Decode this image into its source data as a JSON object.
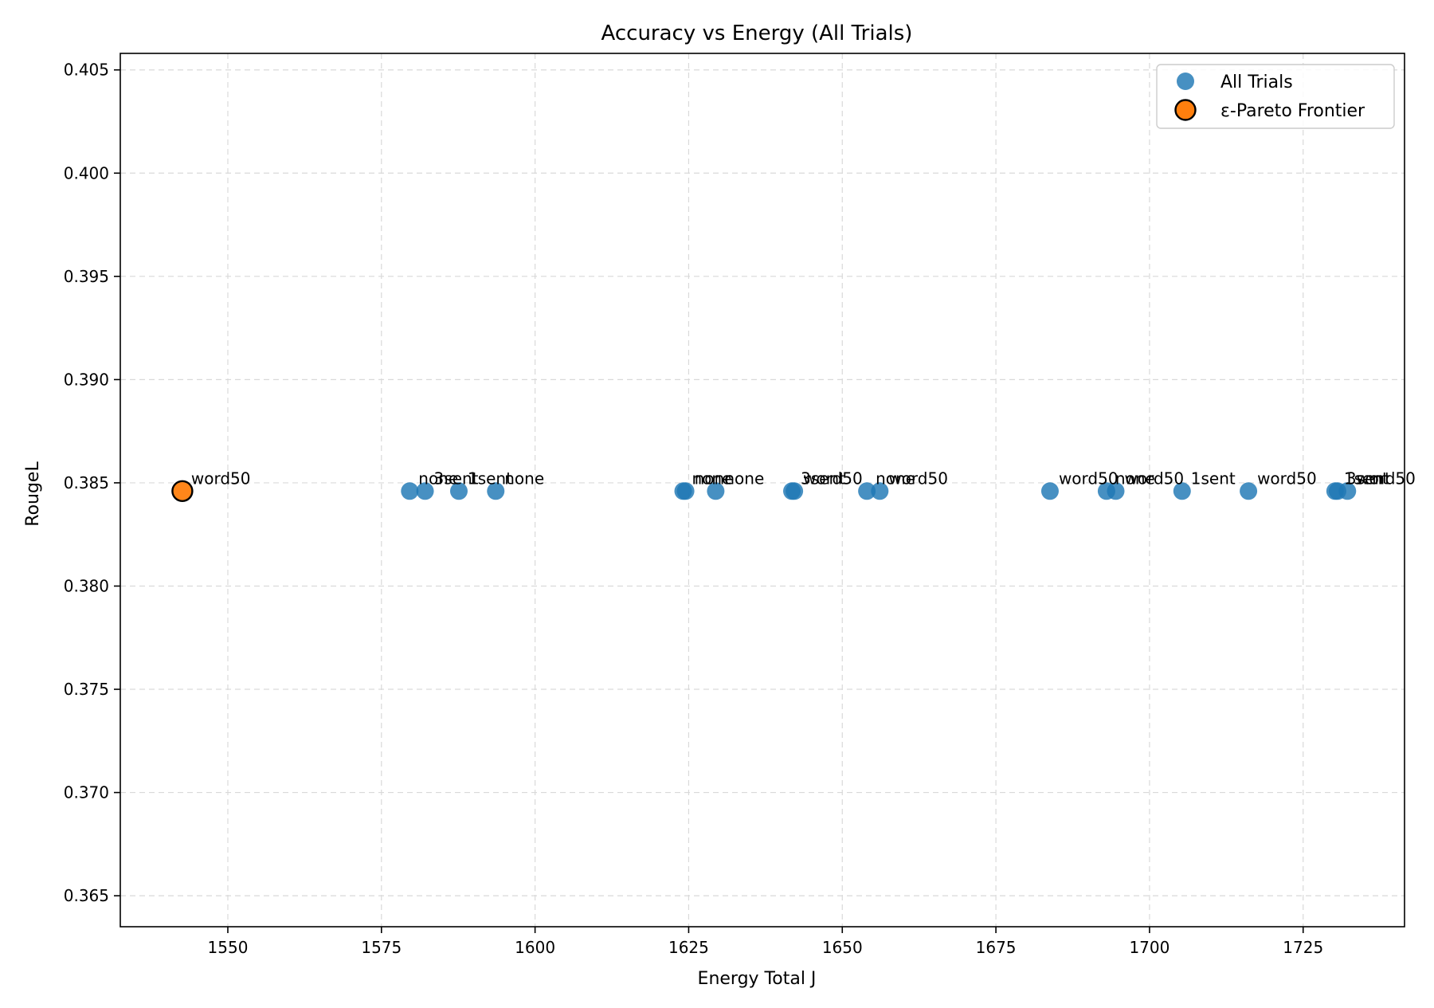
{
  "chart_data": {
    "type": "scatter",
    "title": "Accuracy vs Energy (All Trials)",
    "xlabel": "Energy Total J",
    "ylabel": "RougeL",
    "xlim": [
      1532.5,
      1741.5
    ],
    "ylim": [
      0.3635,
      0.4058
    ],
    "xticks": [
      1550,
      1575,
      1600,
      1625,
      1650,
      1675,
      1700,
      1725
    ],
    "yticks": [
      0.365,
      0.37,
      0.375,
      0.38,
      0.385,
      0.39,
      0.395,
      0.4,
      0.405
    ],
    "grid": true,
    "legend_position": "top-right",
    "colors": {
      "all_trials": "#1f77b4",
      "pareto": "#ff7f0e",
      "pareto_edge": "#000000"
    },
    "series": [
      {
        "name": "All Trials",
        "points": [
          {
            "x": 1579.6,
            "y": 0.3846,
            "label": "none"
          },
          {
            "x": 1582.1,
            "y": 0.3846,
            "label": "3sent"
          },
          {
            "x": 1587.6,
            "y": 0.3846,
            "label": "1sent"
          },
          {
            "x": 1593.6,
            "y": 0.3846,
            "label": "none"
          },
          {
            "x": 1624.1,
            "y": 0.3846,
            "label": "none"
          },
          {
            "x": 1624.5,
            "y": 0.3846,
            "label": "none"
          },
          {
            "x": 1629.4,
            "y": 0.3846,
            "label": "none"
          },
          {
            "x": 1641.8,
            "y": 0.3846,
            "label": "3sent"
          },
          {
            "x": 1642.2,
            "y": 0.3846,
            "label": "word50"
          },
          {
            "x": 1654.0,
            "y": 0.3846,
            "label": "none"
          },
          {
            "x": 1656.1,
            "y": 0.3846,
            "label": "word50"
          },
          {
            "x": 1683.8,
            "y": 0.3846,
            "label": "word50"
          },
          {
            "x": 1693.0,
            "y": 0.3846,
            "label": "none"
          },
          {
            "x": 1694.5,
            "y": 0.3846,
            "label": "word50"
          },
          {
            "x": 1705.3,
            "y": 0.3846,
            "label": "1sent"
          },
          {
            "x": 1716.1,
            "y": 0.3846,
            "label": "word50"
          },
          {
            "x": 1730.2,
            "y": 0.3846,
            "label": "1sent"
          },
          {
            "x": 1730.6,
            "y": 0.3846,
            "label": "3sent"
          },
          {
            "x": 1732.2,
            "y": 0.3846,
            "label": "word50"
          }
        ]
      },
      {
        "name": "ε-Pareto Frontier",
        "points": [
          {
            "x": 1542.6,
            "y": 0.3846,
            "label": "word50"
          }
        ]
      }
    ]
  }
}
